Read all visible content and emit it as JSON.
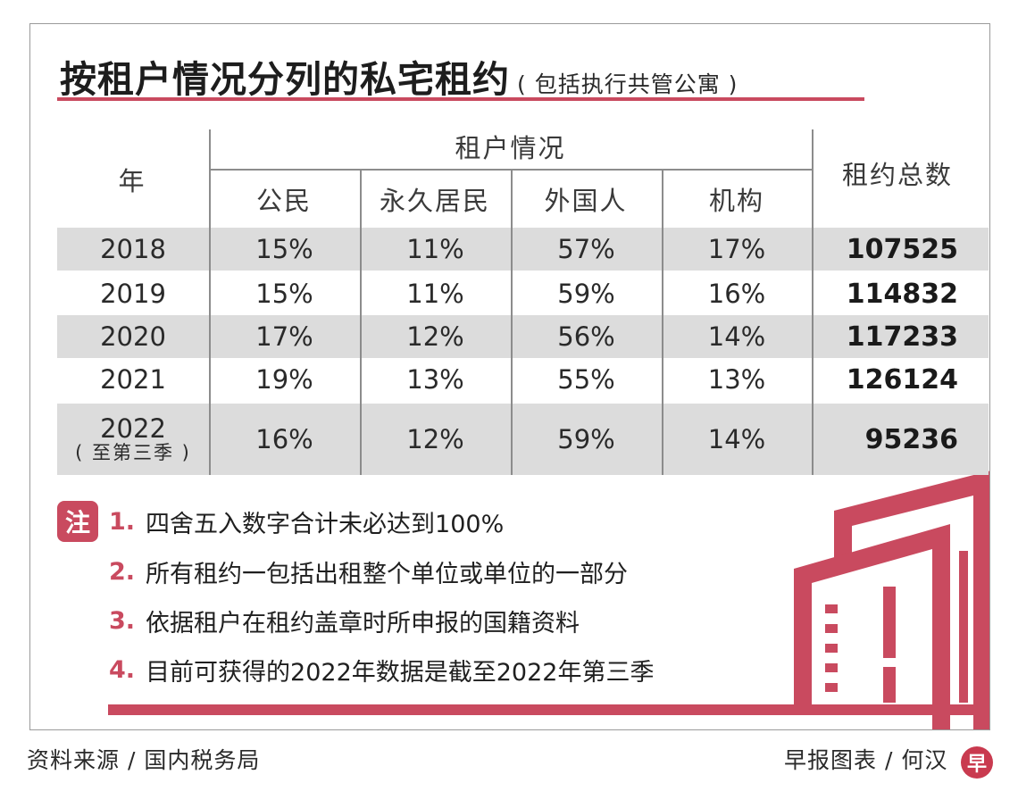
{
  "title": {
    "main": "按租户情况分列的私宅租约",
    "sub": "( 包括执行共管公寓 )"
  },
  "colors": {
    "accent": "#c94a5f",
    "band": "#dcdcdc"
  },
  "chart_data": {
    "type": "table",
    "header": {
      "year": "年",
      "group": "租户情况",
      "total": "租约总数",
      "columns": [
        "公民",
        "永久居民",
        "外国人",
        "机构"
      ]
    },
    "rows": [
      {
        "year": "2018",
        "year_note": "",
        "values": [
          "15%",
          "11%",
          "57%",
          "17%"
        ],
        "total": "107525"
      },
      {
        "year": "2019",
        "year_note": "",
        "values": [
          "15%",
          "11%",
          "59%",
          "16%"
        ],
        "total": "114832"
      },
      {
        "year": "2020",
        "year_note": "",
        "values": [
          "17%",
          "12%",
          "56%",
          "14%"
        ],
        "total": "117233"
      },
      {
        "year": "2021",
        "year_note": "",
        "values": [
          "19%",
          "13%",
          "55%",
          "13%"
        ],
        "total": "126124"
      },
      {
        "year": "2022",
        "year_note": "( 至第三季 )",
        "values": [
          "16%",
          "12%",
          "59%",
          "14%"
        ],
        "total": "95236"
      }
    ]
  },
  "notes": {
    "badge": "注",
    "items": [
      {
        "num": "1.",
        "text": "四舍五入数字合计未必达到100%"
      },
      {
        "num": "2.",
        "text": "所有租约一包括出租整个单位或单位的一部分"
      },
      {
        "num": "3.",
        "text": "依据租户在租约盖章时所申报的国籍资料"
      },
      {
        "num": "4.",
        "text": "目前可获得的2022年数据是截至2022年第三季"
      }
    ]
  },
  "footer": {
    "source": "资料来源 / 国内税务局",
    "credit": "早报图表 / 何汉",
    "logo": "早"
  }
}
